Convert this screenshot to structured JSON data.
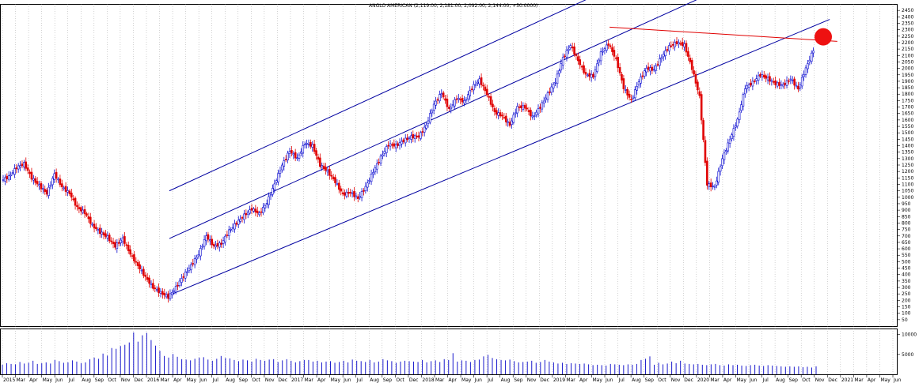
{
  "chart_data": {
    "type": "candlestick",
    "title": "ANGLO AMERICAN (2,119.00, 2,181.00, 2,092.00, 2,144.00, +50.0000)",
    "instrument": "ANGLO AMERICAN",
    "last_bar": {
      "open": 2119.0,
      "high": 2181.0,
      "low": 2092.0,
      "close": 2144.0,
      "change": 50.0
    },
    "price_ylim": [
      0,
      2500
    ],
    "price_ticks": [
      50,
      100,
      150,
      200,
      250,
      300,
      350,
      400,
      450,
      500,
      550,
      600,
      650,
      700,
      750,
      800,
      850,
      900,
      950,
      1000,
      1050,
      1100,
      1150,
      1200,
      1250,
      1300,
      1350,
      1400,
      1450,
      1500,
      1550,
      1600,
      1650,
      1700,
      1750,
      1800,
      1850,
      1900,
      1950,
      2000,
      2050,
      2100,
      2150,
      2200,
      2250,
      2300,
      2350,
      2400,
      2450
    ],
    "volume_ticks": [
      5000,
      10000
    ],
    "volume_ylim": [
      0,
      11500
    ],
    "x_labels": [
      "2015",
      "Mar",
      "Apr",
      "May",
      "Jun",
      "Jul",
      "Aug",
      "Sep",
      "Oct",
      "Nov",
      "Dec",
      "2016",
      "Mar",
      "Apr",
      "May",
      "Jun",
      "Jul",
      "Aug",
      "Sep",
      "Oct",
      "Nov",
      "Dec",
      "2017",
      "Mar",
      "Apr",
      "May",
      "Jun",
      "Jul",
      "Aug",
      "Sep",
      "Oct",
      "Dec",
      "2018",
      "Mar",
      "Apr",
      "May",
      "Jun",
      "Jul",
      "Aug",
      "Sep",
      "Nov",
      "Dec",
      "2019",
      "Mar",
      "Apr",
      "May",
      "Jun",
      "Jul",
      "Aug",
      "Sep",
      "Oct",
      "Nov",
      "Dec",
      "2020",
      "Mar",
      "Apr",
      "May",
      "Jun",
      "Jul",
      "Aug",
      "Sep",
      "Oct",
      "Nov",
      "Dec",
      "2021",
      "Mar",
      "Apr",
      "May",
      "Jun"
    ],
    "price_path": [
      [
        0,
        1130
      ],
      [
        2,
        1160
      ],
      [
        4,
        1230
      ],
      [
        6,
        1260
      ],
      [
        8,
        1150
      ],
      [
        10,
        1090
      ],
      [
        12,
        1030
      ],
      [
        14,
        1180
      ],
      [
        16,
        1080
      ],
      [
        18,
        1030
      ],
      [
        20,
        920
      ],
      [
        22,
        880
      ],
      [
        24,
        780
      ],
      [
        26,
        730
      ],
      [
        28,
        690
      ],
      [
        30,
        620
      ],
      [
        32,
        680
      ],
      [
        34,
        560
      ],
      [
        36,
        470
      ],
      [
        38,
        380
      ],
      [
        40,
        300
      ],
      [
        42,
        260
      ],
      [
        44,
        225
      ],
      [
        46,
        300
      ],
      [
        48,
        390
      ],
      [
        50,
        470
      ],
      [
        52,
        560
      ],
      [
        54,
        700
      ],
      [
        56,
        620
      ],
      [
        58,
        640
      ],
      [
        60,
        740
      ],
      [
        62,
        800
      ],
      [
        64,
        860
      ],
      [
        66,
        910
      ],
      [
        68,
        870
      ],
      [
        70,
        960
      ],
      [
        72,
        1100
      ],
      [
        74,
        1250
      ],
      [
        76,
        1360
      ],
      [
        78,
        1300
      ],
      [
        80,
        1420
      ],
      [
        82,
        1400
      ],
      [
        84,
        1250
      ],
      [
        86,
        1200
      ],
      [
        88,
        1120
      ],
      [
        90,
        1020
      ],
      [
        92,
        1040
      ],
      [
        94,
        990
      ],
      [
        96,
        1080
      ],
      [
        98,
        1200
      ],
      [
        100,
        1310
      ],
      [
        102,
        1410
      ],
      [
        104,
        1400
      ],
      [
        106,
        1440
      ],
      [
        108,
        1470
      ],
      [
        110,
        1470
      ],
      [
        112,
        1560
      ],
      [
        114,
        1720
      ],
      [
        116,
        1810
      ],
      [
        118,
        1680
      ],
      [
        120,
        1770
      ],
      [
        122,
        1740
      ],
      [
        124,
        1850
      ],
      [
        126,
        1910
      ],
      [
        128,
        1800
      ],
      [
        130,
        1660
      ],
      [
        132,
        1630
      ],
      [
        134,
        1560
      ],
      [
        136,
        1700
      ],
      [
        138,
        1700
      ],
      [
        140,
        1620
      ],
      [
        142,
        1700
      ],
      [
        144,
        1800
      ],
      [
        146,
        1900
      ],
      [
        148,
        2080
      ],
      [
        150,
        2180
      ],
      [
        152,
        2060
      ],
      [
        154,
        1950
      ],
      [
        156,
        1940
      ],
      [
        158,
        2120
      ],
      [
        160,
        2190
      ],
      [
        162,
        2070
      ],
      [
        164,
        1850
      ],
      [
        166,
        1750
      ],
      [
        168,
        1900
      ],
      [
        170,
        2000
      ],
      [
        172,
        1990
      ],
      [
        174,
        2090
      ],
      [
        176,
        2170
      ],
      [
        178,
        2200
      ],
      [
        180,
        2180
      ],
      [
        182,
        2000
      ],
      [
        184,
        1780
      ],
      [
        186,
        1100
      ],
      [
        188,
        1080
      ],
      [
        190,
        1300
      ],
      [
        192,
        1450
      ],
      [
        194,
        1600
      ],
      [
        196,
        1850
      ],
      [
        198,
        1890
      ],
      [
        200,
        1950
      ],
      [
        202,
        1920
      ],
      [
        204,
        1880
      ],
      [
        206,
        1870
      ],
      [
        208,
        1920
      ],
      [
        210,
        1840
      ],
      [
        212,
        2000
      ],
      [
        214,
        2144
      ]
    ],
    "volume_values": [
      2400,
      2800,
      2600,
      2500,
      3100,
      2700,
      2900,
      3400,
      2600,
      2800,
      3000,
      2700,
      3600,
      3300,
      2900,
      3000,
      3500,
      3200,
      2800,
      3000,
      3800,
      4200,
      3900,
      5200,
      4700,
      6600,
      6400,
      7100,
      7400,
      8000,
      10500,
      8200,
      9800,
      10400,
      8600,
      7200,
      5900,
      4600,
      4200,
      5100,
      4400,
      3800,
      3700,
      3500,
      3900,
      4200,
      4300,
      3700,
      3400,
      3900,
      4600,
      4100,
      4000,
      3600,
      3300,
      3700,
      3500,
      3200,
      3900,
      3600,
      3400,
      3700,
      3800,
      3100,
      3500,
      3800,
      3400,
      3000,
      3300,
      3600,
      3600,
      3200,
      3400,
      3000,
      3200,
      3300,
      2900,
      3100,
      3400,
      3000,
      3700,
      3400,
      3300,
      3100,
      3600,
      3000,
      3200,
      3800,
      3500,
      3300,
      2900,
      3200,
      3400,
      3300,
      3200,
      3100,
      3600,
      3000,
      3300,
      3500,
      3100,
      3800,
      3600,
      5300,
      3200,
      3500,
      3400,
      3100,
      3600,
      3700,
      4500,
      4900,
      4100,
      3800,
      3600,
      3500,
      3700,
      3300,
      3000,
      3100,
      3200,
      3400,
      2900,
      3100,
      3600,
      3200,
      3000,
      2700,
      2900,
      2600,
      2800,
      2700,
      2600,
      2700,
      2500,
      2300,
      2400,
      2300,
      2200,
      2600,
      2500,
      2400,
      2300,
      2500,
      2400,
      2600,
      3600,
      3900,
      4500,
      2400,
      2900,
      2500,
      2700,
      3200,
      2800,
      3400,
      2700,
      2600,
      2500,
      2600,
      2400,
      2300,
      2500,
      2600,
      2300,
      2200,
      2500,
      2300,
      2400,
      2200,
      2100,
      2300,
      2400,
      2200,
      2100,
      2300,
      2200,
      2100,
      2000,
      1900,
      2000,
      1900,
      2000,
      1800,
      1900,
      1700,
      2000
    ],
    "colors": {
      "up": "#0b0bd0",
      "down": "#e00000",
      "channel": "#0000a0",
      "resistance": "#e00000",
      "marker": "#ee1111",
      "grid": "#7f7f7f",
      "volume": "#1a1acc"
    },
    "legend_placement": "none",
    "grid": true
  }
}
